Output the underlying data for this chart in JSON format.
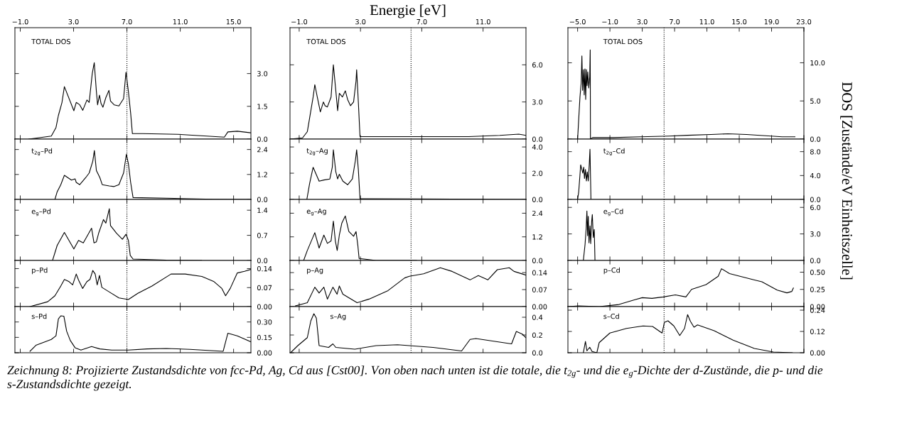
{
  "chart_data": [
    {
      "type": "line",
      "title": "TOTAL DOS",
      "xlim": [
        -1.4,
        16.3
      ],
      "xticks": [
        {
          "value": -1,
          "label": "−1.0"
        },
        {
          "value": 3,
          "label": "3.0"
        },
        {
          "value": 7,
          "label": "7.0"
        },
        {
          "value": 11,
          "label": "11.0"
        },
        {
          "value": 15,
          "label": "15.0"
        }
      ],
      "ylim": [
        0,
        5.1
      ],
      "yticks": [
        {
          "value": 0,
          "label": "0.0"
        },
        {
          "value": 1.5,
          "label": "1.5"
        },
        {
          "value": 3,
          "label": "3.0"
        }
      ],
      "ref_lines": [
        {
          "axis": "x",
          "value": 7.0,
          "color": "#000000",
          "line_style": "dotted"
        }
      ],
      "series": [
        {
          "color": "#000000",
          "x": [
            -0.36,
            1.33,
            1.68,
            1.86,
            2.13,
            2.31,
            3.02,
            3.2,
            3.46,
            3.69,
            4.0,
            4.17,
            4.4,
            4.55,
            4.71,
            4.8,
            4.94,
            5.06,
            5.2,
            5.42,
            5.65,
            5.77,
            6.04,
            6.4,
            6.75,
            6.93,
            7.11,
            7.28,
            7.41,
            8.17,
            10.84,
            14.31,
            14.57,
            15.28,
            16.3
          ],
          "values": [
            0,
            0.14,
            0.53,
            1.08,
            1.68,
            2.4,
            1.3,
            1.68,
            1.57,
            1.32,
            1.79,
            1.68,
            3.0,
            3.5,
            2.18,
            1.57,
            2.01,
            1.63,
            1.46,
            1.9,
            2.23,
            1.74,
            1.57,
            1.52,
            1.85,
            3.06,
            2.18,
            1.19,
            0.25,
            0.25,
            0.22,
            0.09,
            0.33,
            0.36,
            0.29
          ]
        }
      ]
    },
    {
      "type": "line",
      "title": "TOTAL DOS",
      "xlabel": "Energie [eV]",
      "xlim": [
        -1.6,
        13.8
      ],
      "xticks": [
        {
          "value": -1,
          "label": "−1.0"
        },
        {
          "value": 3,
          "label": "3.0"
        },
        {
          "value": 7,
          "label": "7.0"
        },
        {
          "value": 11,
          "label": "11.0"
        }
      ],
      "ylim": [
        0,
        9.0
      ],
      "yticks": [
        {
          "value": 0,
          "label": "0.0"
        },
        {
          "value": 3,
          "label": "3.0"
        },
        {
          "value": 6,
          "label": "6.0"
        }
      ],
      "ref_lines": [
        {
          "axis": "x",
          "value": 6.3,
          "color": "#000000",
          "line_style": "dotted"
        }
      ],
      "series": [
        {
          "color": "#000000",
          "x": [
            -1.56,
            -0.78,
            -0.47,
            -0.32,
            -0.09,
            0.02,
            0.18,
            0.38,
            0.58,
            0.69,
            0.84,
            1.08,
            1.23,
            1.36,
            1.51,
            1.62,
            1.82,
            2.01,
            2.16,
            2.35,
            2.55,
            2.71,
            2.75,
            2.86,
            2.97,
            5.88,
            10.07,
            12.09,
            13.33,
            13.8
          ],
          "values": [
            0,
            0.1,
            0.6,
            1.7,
            3.4,
            4.4,
            3.4,
            2.2,
            3.0,
            2.7,
            2.6,
            3.4,
            6.0,
            4.3,
            2.3,
            3.7,
            3.4,
            3.9,
            3.2,
            2.7,
            3.0,
            4.7,
            5.6,
            3.0,
            0.2,
            0.2,
            0.2,
            0.3,
            0.4,
            0.3
          ]
        }
      ]
    },
    {
      "type": "line",
      "title": "TOTAL DOS",
      "xlim": [
        -6.2,
        23.0
      ],
      "xticks": [
        {
          "value": -5,
          "label": "−5.0"
        },
        {
          "value": -1,
          "label": "−1.0"
        },
        {
          "value": 3,
          "label": "3.0"
        },
        {
          "value": 7,
          "label": "7.0"
        },
        {
          "value": 11,
          "label": "11.0"
        },
        {
          "value": 15,
          "label": "15.0"
        },
        {
          "value": 19,
          "label": "19.0"
        },
        {
          "value": 23,
          "label": "23.0"
        }
      ],
      "ylim": [
        0,
        14.6
      ],
      "yticks": [
        {
          "value": 0,
          "label": "0.0"
        },
        {
          "value": 5,
          "label": "5.0"
        },
        {
          "value": 10,
          "label": "10.0"
        }
      ],
      "ref_lines": [
        {
          "axis": "x",
          "value": 5.7,
          "color": "#000000",
          "line_style": "dotted"
        }
      ],
      "series": [
        {
          "color": "#000000",
          "x": [
            -5.0,
            -4.71,
            -4.56,
            -4.47,
            -4.38,
            -4.27,
            -4.18,
            -4.09,
            -4.0,
            -3.91,
            -3.83,
            -3.74,
            -3.62,
            -3.5,
            -3.44,
            -3.41,
            -3.15,
            -0.6,
            2.8,
            6.3,
            8.6,
            11.5,
            13.6,
            15.9,
            20.3,
            21.9
          ],
          "values": [
            0,
            5.5,
            7.3,
            10.9,
            6.4,
            9.1,
            5.8,
            9.2,
            5.2,
            9.1,
            7.0,
            8.8,
            6.7,
            8.2,
            11.7,
            0.0,
            0.2,
            0.2,
            0.3,
            0.4,
            0.5,
            0.6,
            0.7,
            0.6,
            0.3,
            0.3
          ]
        }
      ]
    },
    {
      "type": "line",
      "title": "t$_{2g}$–Pd",
      "tick_labels": "y",
      "xlim": [
        -1.4,
        16.3
      ],
      "xticks": [
        -1,
        3,
        7,
        11,
        15
      ],
      "ylim": [
        0,
        2.9
      ],
      "yticks": [
        {
          "value": 0,
          "label": "0.0"
        },
        {
          "value": 1.2,
          "label": "1.2"
        },
        {
          "value": 2.4,
          "label": "2.4"
        }
      ],
      "ref_lines": [
        {
          "axis": "x",
          "value": 7.0,
          "color": "#000000",
          "line_style": "dotted"
        }
      ],
      "series": [
        {
          "color": "#000000",
          "x": [
            1.6,
            1.77,
            2.04,
            2.31,
            2.84,
            3.11,
            3.2,
            3.46,
            3.91,
            4.17,
            4.44,
            4.56,
            4.71,
            4.97,
            5.15,
            5.68,
            6.04,
            6.4,
            6.75,
            6.96,
            7.11,
            7.28,
            7.46,
            9.95,
            13.5,
            16.3
          ],
          "values": [
            0,
            0.37,
            0.71,
            1.16,
            0.93,
            0.99,
            0.82,
            0.71,
            1.05,
            1.27,
            1.84,
            2.35,
            1.39,
            1.05,
            0.71,
            0.65,
            0.62,
            0.71,
            1.27,
            2.17,
            1.72,
            0.82,
            0.09,
            0.06,
            0.01,
            0.0
          ]
        }
      ]
    },
    {
      "type": "line",
      "title": "t$_{2g}$–Ag",
      "tick_labels": "y",
      "xlim": [
        -1.6,
        13.8
      ],
      "xticks": [
        -1,
        3,
        7,
        11
      ],
      "ylim": [
        0,
        4.6
      ],
      "yticks": [
        {
          "value": 0,
          "label": "0.0"
        },
        {
          "value": 2,
          "label": "2.0"
        },
        {
          "value": 4,
          "label": "4.0"
        }
      ],
      "ref_lines": [
        {
          "axis": "x",
          "value": 6.3,
          "color": "#000000",
          "line_style": "dotted"
        }
      ],
      "series": [
        {
          "color": "#000000",
          "x": [
            -0.5,
            -0.32,
            -0.09,
            0.3,
            0.61,
            1.0,
            1.16,
            1.23,
            1.39,
            1.51,
            1.62,
            1.85,
            2.16,
            2.47,
            2.67,
            2.75,
            2.86,
            2.97,
            6.66,
            13.8
          ],
          "values": [
            0,
            1.21,
            2.45,
            1.39,
            1.48,
            1.56,
            2.45,
            3.79,
            2.1,
            1.56,
            1.92,
            1.39,
            1.12,
            1.56,
            2.99,
            3.79,
            2.28,
            0.05,
            0.04,
            0
          ]
        }
      ]
    },
    {
      "type": "line",
      "title": "t$_{2g}$–Cd",
      "tick_labels": "y",
      "xlim": [
        -6.2,
        23.0
      ],
      "xticks": [
        -5,
        -1,
        3,
        7,
        11,
        15,
        19,
        23
      ],
      "ylim": [
        0,
        10.1
      ],
      "yticks": [
        {
          "value": 0,
          "label": "0.0"
        },
        {
          "value": 4,
          "label": "4.0"
        },
        {
          "value": 8,
          "label": "8.0"
        }
      ],
      "ref_lines": [
        {
          "axis": "x",
          "value": 5.7,
          "color": "#000000",
          "line_style": "dotted"
        }
      ],
      "series": [
        {
          "color": "#000000",
          "x": [
            -5.0,
            -4.86,
            -4.62,
            -4.47,
            -4.36,
            -4.24,
            -4.15,
            -4.03,
            -3.91,
            -3.8,
            -3.68,
            -3.56,
            -3.47,
            -3.35
          ],
          "values": [
            0,
            1.3,
            5.8,
            5.0,
            4.4,
            5.4,
            3.5,
            5.0,
            3.1,
            4.6,
            3.1,
            5.8,
            8.4,
            0.1
          ]
        }
      ]
    },
    {
      "type": "line",
      "title": "e$_{g}$–Pd",
      "tick_labels": "y",
      "xlim": [
        -1.4,
        16.3
      ],
      "xticks": [
        -1,
        3,
        7,
        11,
        15
      ],
      "ylim": [
        0,
        1.7
      ],
      "yticks": [
        {
          "value": 0,
          "label": "0.0"
        },
        {
          "value": 0.7,
          "label": "0.7"
        },
        {
          "value": 1.4,
          "label": "1.4"
        }
      ],
      "ref_lines": [
        {
          "axis": "x",
          "value": 7.0,
          "color": "#000000",
          "line_style": "dotted"
        }
      ],
      "series": [
        {
          "color": "#000000",
          "x": [
            1.42,
            1.77,
            2.31,
            3.02,
            3.37,
            3.73,
            4.35,
            4.53,
            4.71,
            4.88,
            5.24,
            5.42,
            5.68,
            5.77,
            6.22,
            6.66,
            6.93,
            7.11,
            7.25,
            7.46,
            9.95,
            12.6
          ],
          "values": [
            0,
            0.42,
            0.78,
            0.32,
            0.56,
            0.49,
            0.9,
            0.49,
            0.52,
            0.76,
            1.14,
            1.04,
            1.44,
            0.97,
            0.76,
            0.59,
            0.73,
            0.56,
            0.14,
            0.04,
            0.01,
            0
          ]
        }
      ]
    },
    {
      "type": "line",
      "title": "e$_{g}$–Ag",
      "tick_labels": "y",
      "xlim": [
        -1.6,
        13.8
      ],
      "xticks": [
        -1,
        3,
        7,
        11
      ],
      "ylim": [
        0,
        3.1
      ],
      "yticks": [
        {
          "value": 0,
          "label": "0.0"
        },
        {
          "value": 1.2,
          "label": "1.2"
        },
        {
          "value": 2.4,
          "label": "2.4"
        }
      ],
      "ref_lines": [
        {
          "axis": "x",
          "value": 6.3,
          "color": "#000000",
          "line_style": "dotted"
        }
      ],
      "series": [
        {
          "color": "#000000",
          "x": [
            -0.71,
            -0.47,
            0.02,
            0.3,
            0.61,
            0.84,
            1.08,
            1.23,
            1.36,
            1.48,
            1.62,
            1.78,
            2.01,
            2.24,
            2.55,
            2.71,
            2.83,
            2.91,
            4.02,
            6.66
          ],
          "values": [
            0,
            0.51,
            1.41,
            0.63,
            1.29,
            0.87,
            0.99,
            2.0,
            0.99,
            0.51,
            1.29,
            1.89,
            2.26,
            1.47,
            1.23,
            1.47,
            0.75,
            0.1,
            0,
            0
          ]
        }
      ]
    },
    {
      "type": "line",
      "title": "e$_{g}$–Cd",
      "tick_labels": "y",
      "xlim": [
        -6.2,
        23.0
      ],
      "xticks": [
        -5,
        -1,
        3,
        7,
        11,
        15,
        19,
        23
      ],
      "ylim": [
        0,
        6.9
      ],
      "yticks": [
        {
          "value": 0,
          "label": "0.0"
        },
        {
          "value": 3,
          "label": "3.0"
        },
        {
          "value": 6,
          "label": "6.0"
        }
      ],
      "ref_lines": [
        {
          "axis": "x",
          "value": 5.7,
          "color": "#000000",
          "line_style": "dotted"
        }
      ],
      "series": [
        {
          "color": "#000000",
          "x": [
            -4.29,
            -4.08,
            -3.94,
            -3.85,
            -3.76,
            -3.68,
            -3.59,
            -3.47,
            -3.38,
            -3.26,
            -3.18,
            -3.06,
            -2.94,
            -2.85
          ],
          "values": [
            0,
            1.8,
            3.6,
            5.6,
            2.8,
            5.0,
            2.0,
            3.9,
            1.9,
            4.4,
            5.2,
            2.6,
            3.5,
            0
          ]
        }
      ]
    },
    {
      "type": "line",
      "title": "p–Pd",
      "tick_labels": "y",
      "xlim": [
        -1.4,
        16.3
      ],
      "xticks": [
        -1,
        3,
        7,
        11,
        15
      ],
      "ylim": [
        0,
        0.17
      ],
      "yticks": [
        {
          "value": 0,
          "label": "0.00"
        },
        {
          "value": 0.07,
          "label": "0.07"
        },
        {
          "value": 0.14,
          "label": "0.14"
        }
      ],
      "ref_lines": [
        {
          "axis": "x",
          "value": 7.0,
          "color": "#000000",
          "line_style": "dotted"
        }
      ],
      "series": [
        {
          "color": "#000000",
          "x": [
            -0.27,
            1.06,
            1.6,
            2.04,
            2.31,
            2.66,
            2.93,
            3.2,
            3.37,
            3.68,
            4.0,
            4.23,
            4.44,
            4.62,
            4.77,
            4.94,
            5.12,
            5.68,
            6.4,
            7.11,
            7.82,
            8.88,
            10.31,
            11.37,
            12.62,
            13.5,
            14.12,
            14.4,
            14.75,
            15.28,
            15.82,
            16.3
          ],
          "values": [
            0.0,
            0.018,
            0.04,
            0.076,
            0.1,
            0.092,
            0.08,
            0.12,
            0.098,
            0.067,
            0.092,
            0.1,
            0.133,
            0.12,
            0.08,
            0.115,
            0.071,
            0.054,
            0.032,
            0.026,
            0.049,
            0.076,
            0.12,
            0.12,
            0.111,
            0.093,
            0.067,
            0.04,
            0.067,
            0.124,
            0.13,
            0.137
          ]
        }
      ]
    },
    {
      "type": "line",
      "title": "p–Ag",
      "tick_labels": "y",
      "xlim": [
        -1.6,
        13.8
      ],
      "xticks": [
        -1,
        3,
        7,
        11
      ],
      "ylim": [
        0,
        0.19
      ],
      "yticks": [
        {
          "value": 0,
          "label": "0.00"
        },
        {
          "value": 0.07,
          "label": "0.07"
        },
        {
          "value": 0.14,
          "label": "0.14"
        }
      ],
      "ref_lines": [
        {
          "axis": "x",
          "value": 6.3,
          "color": "#000000",
          "line_style": "dotted"
        }
      ],
      "series": [
        {
          "color": "#000000",
          "x": [
            -1.25,
            -0.47,
            0.02,
            0.3,
            0.61,
            0.84,
            1.2,
            1.47,
            1.62,
            1.85,
            2.78,
            3.56,
            4.8,
            5.88,
            6.19,
            7.12,
            8.21,
            8.98,
            10.15,
            10.69,
            11.31,
            11.93,
            12.71,
            13.02,
            13.79
          ],
          "values": [
            0.003,
            0.016,
            0.08,
            0.056,
            0.08,
            0.031,
            0.08,
            0.051,
            0.085,
            0.051,
            0.016,
            0.031,
            0.066,
            0.118,
            0.125,
            0.135,
            0.16,
            0.145,
            0.11,
            0.128,
            0.11,
            0.152,
            0.16,
            0.145,
            0.13
          ]
        }
      ]
    },
    {
      "type": "line",
      "title": "p–Cd",
      "tick_labels": "y",
      "xlim": [
        -6.2,
        23.0
      ],
      "xticks": [
        -5,
        -1,
        3,
        7,
        11,
        15,
        19,
        23
      ],
      "ylim": [
        0,
        0.67
      ],
      "yticks": [
        {
          "value": 0,
          "label": "0.00"
        },
        {
          "value": 0.25,
          "label": "0.25"
        },
        {
          "value": 0.5,
          "label": "0.50"
        }
      ],
      "ref_lines": [
        {
          "axis": "x",
          "value": 5.7,
          "color": "#000000",
          "line_style": "dotted"
        }
      ],
      "series": [
        {
          "color": "#000000",
          "x": [
            -6.1,
            -4.9,
            -2.3,
            0.1,
            2.1,
            3.0,
            4.2,
            5.6,
            7.1,
            8.4,
            9.1,
            10.9,
            12.4,
            12.8,
            13.8,
            16.8,
            17.8,
            19.7,
            20.9,
            21.5,
            21.7
          ],
          "values": [
            0,
            0.01,
            0,
            0.03,
            0.1,
            0.13,
            0.12,
            0.14,
            0.17,
            0.14,
            0.25,
            0.32,
            0.44,
            0.55,
            0.48,
            0.39,
            0.36,
            0.24,
            0.2,
            0.22,
            0.27
          ]
        }
      ]
    },
    {
      "type": "line",
      "title": "s–Pd",
      "tick_labels": "y",
      "xlim": [
        -1.4,
        16.3
      ],
      "xticks": [
        -1,
        3,
        7,
        11,
        15
      ],
      "ylim": [
        0,
        0.45
      ],
      "yticks": [
        {
          "value": 0,
          "label": "0.00"
        },
        {
          "value": 0.15,
          "label": "0.15"
        },
        {
          "value": 0.3,
          "label": "0.30"
        }
      ],
      "ref_lines": [
        {
          "axis": "x",
          "value": 7.0,
          "color": "#000000",
          "line_style": "dotted"
        }
      ],
      "series": [
        {
          "color": "#000000",
          "x": [
            -0.27,
            0.17,
            1.33,
            1.68,
            1.86,
            2.04,
            2.27,
            2.48,
            2.75,
            3.11,
            3.55,
            4.35,
            4.97,
            5.86,
            7.11,
            8.53,
            9.95,
            11.73,
            14.22,
            14.57,
            15.28,
            16.3
          ],
          "values": [
            0.014,
            0.072,
            0.13,
            0.165,
            0.33,
            0.36,
            0.357,
            0.21,
            0.12,
            0.049,
            0.026,
            0.061,
            0.037,
            0.026,
            0.026,
            0.037,
            0.042,
            0.033,
            0.014,
            0.19,
            0.165,
            0.107
          ]
        }
      ]
    },
    {
      "type": "line",
      "title": "s–Ag",
      "tick_labels": "y",
      "xlim": [
        -1.6,
        13.8
      ],
      "xticks": [
        -1,
        3,
        7,
        11
      ],
      "ylim": [
        0,
        0.52
      ],
      "yticks": [
        {
          "value": 0,
          "label": "0.0"
        },
        {
          "value": 0.2,
          "label": "0.2"
        },
        {
          "value": 0.4,
          "label": "0.4"
        }
      ],
      "ref_lines": [
        {
          "axis": "x",
          "value": 6.3,
          "color": "#000000",
          "line_style": "dotted"
        }
      ],
      "series": [
        {
          "color": "#000000",
          "x": [
            -1.56,
            -1.09,
            -0.47,
            -0.24,
            -0.04,
            0.12,
            0.3,
            0.92,
            1.2,
            1.39,
            2.63,
            4.02,
            5.42,
            7.74,
            9.6,
            10.15,
            10.53,
            12.86,
            13.17,
            13.56,
            13.79
          ],
          "values": [
            0,
            0.08,
            0.17,
            0.36,
            0.44,
            0.39,
            0.08,
            0.06,
            0.1,
            0.06,
            0.04,
            0.08,
            0.09,
            0.06,
            0.02,
            0.15,
            0.16,
            0.1,
            0.24,
            0.21,
            0.17
          ]
        }
      ]
    },
    {
      "type": "line",
      "title": "s–Cd",
      "tick_labels": "y",
      "ylabel": "DOS [Zustände/eV Einheitszelle]",
      "xlim": [
        -6.2,
        23.0
      ],
      "xticks": [
        -5,
        -1,
        3,
        7,
        11,
        15,
        19,
        23
      ],
      "ylim": [
        0,
        0.26
      ],
      "yticks": [
        {
          "value": 0,
          "label": "0.00"
        },
        {
          "value": 0.12,
          "label": "0.12"
        },
        {
          "value": 0.24,
          "label": "0.24"
        }
      ],
      "ref_lines": [
        {
          "axis": "x",
          "value": 5.7,
          "color": "#000000",
          "line_style": "dotted"
        }
      ],
      "annotations": [
        "Zeichnung 8: Projizierte Zustandsdichte von fcc-Pd, Ag, Cd aus [Cst00]. Von oben nach unten ist die totale, die t$_{2g}$- und die e$_{g}$-Dichte der d-Zustände, die p- und die s-Zustandsdichte gezeigt."
      ],
      "series": [
        {
          "color": "#000000",
          "x": [
            -4.29,
            -4.03,
            -3.85,
            -3.5,
            -3.21,
            -2.62,
            -2.33,
            -1.01,
            1.05,
            3.1,
            4.28,
            5.45,
            5.74,
            6.18,
            6.91,
            7.64,
            8.23,
            8.61,
            8.96,
            9.4,
            9.84,
            11.9,
            14.24,
            16.88,
            19.23,
            21.57
          ],
          "values": [
            0,
            0.064,
            0.011,
            0.031,
            0.007,
            0,
            0.057,
            0.111,
            0.137,
            0.151,
            0.148,
            0.111,
            0.171,
            0.18,
            0.151,
            0.097,
            0.137,
            0.215,
            0.177,
            0.144,
            0.157,
            0.124,
            0.071,
            0.024,
            0.004,
            0
          ]
        }
      ]
    }
  ]
}
